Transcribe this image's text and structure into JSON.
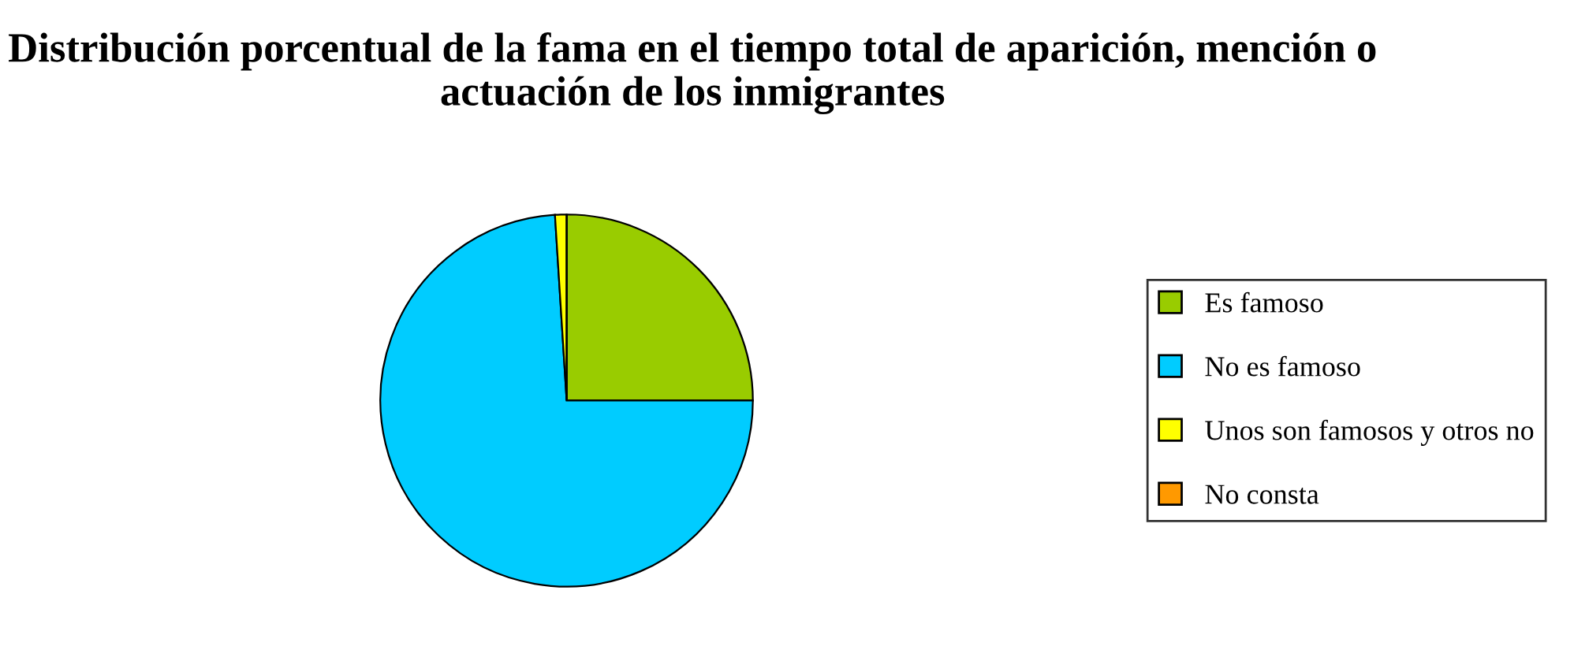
{
  "chart_data": {
    "type": "pie",
    "title": "Distribución porcentual de la fama en el tiempo total de aparición, mención o actuación de los inmigrantes",
    "categories": [
      "Es famoso",
      "No es famoso",
      "Unos son famosos y otros no",
      "No consta"
    ],
    "values": [
      25,
      74,
      1,
      0
    ],
    "colors": [
      "#99cc00",
      "#00ccff",
      "#ffff00",
      "#ff9900"
    ],
    "legend": "right"
  }
}
